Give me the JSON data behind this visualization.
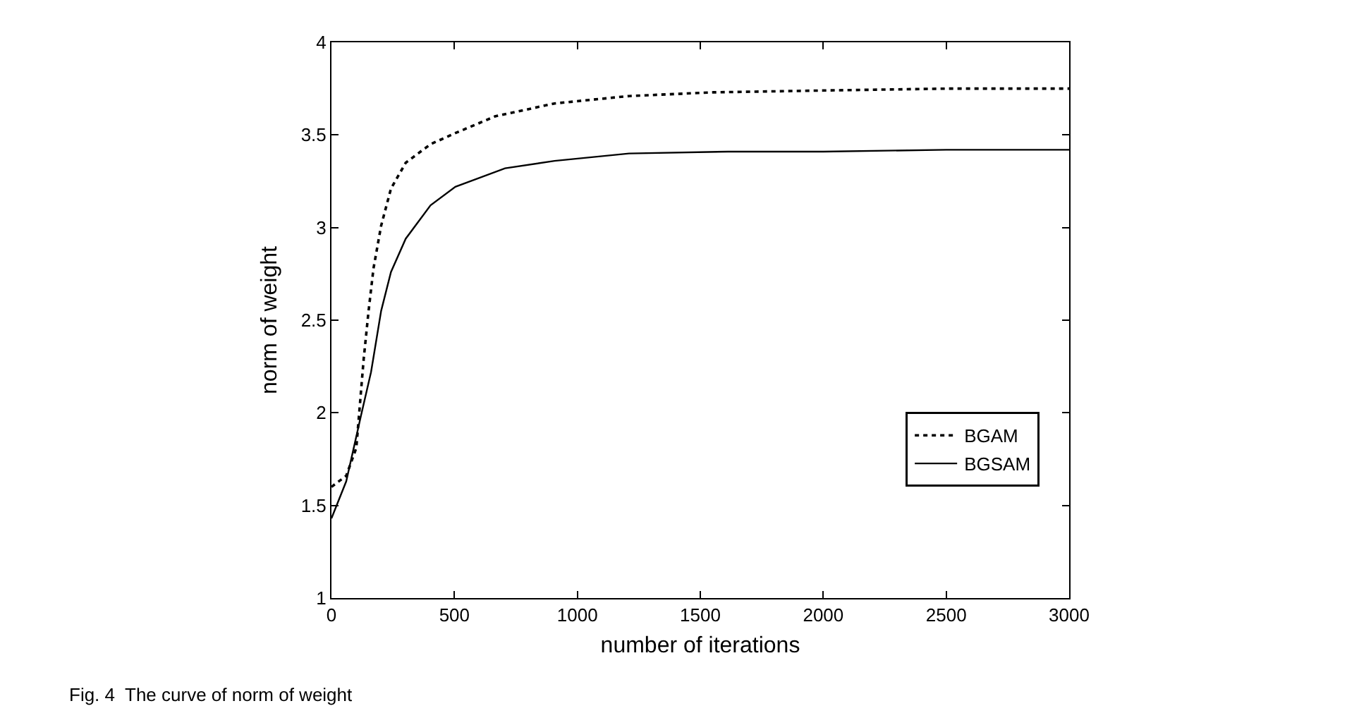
{
  "chart_data": {
    "type": "line",
    "xlabel": "number of iterations",
    "ylabel": "norm of weight",
    "xlim": [
      0,
      3000
    ],
    "xticks": [
      0,
      500,
      1000,
      1500,
      2000,
      2500,
      3000
    ],
    "ylim": [
      1,
      4
    ],
    "yticks": [
      1,
      1.5,
      2,
      2.5,
      3,
      3.5,
      4
    ],
    "legend": "bottom right",
    "marker": "none",
    "series": [
      {
        "name": "BGAM",
        "color": "#000000",
        "line_style": "dotted",
        "x": [
          0,
          60,
          101,
          131,
          151,
          171,
          202,
          242,
          302,
          403,
          504,
          665,
          907,
          1210,
          1552,
          2000,
          2500,
          3000
        ],
        "values": [
          1.6,
          1.66,
          1.81,
          2.29,
          2.55,
          2.78,
          3.01,
          3.21,
          3.35,
          3.45,
          3.51,
          3.6,
          3.67,
          3.71,
          3.73,
          3.74,
          3.75,
          3.75
        ]
      },
      {
        "name": "BGSAM",
        "color": "#000000",
        "line_style": "solid",
        "x": [
          0,
          60,
          121,
          161,
          202,
          242,
          302,
          403,
          504,
          706,
          907,
          1210,
          1613,
          2000,
          2500,
          3000
        ],
        "values": [
          1.43,
          1.63,
          1.99,
          2.22,
          2.55,
          2.76,
          2.94,
          3.12,
          3.22,
          3.32,
          3.36,
          3.4,
          3.41,
          3.41,
          3.42,
          3.42
        ]
      }
    ],
    "annotations": [
      "Fig. 4  The curve of norm of weight"
    ]
  }
}
